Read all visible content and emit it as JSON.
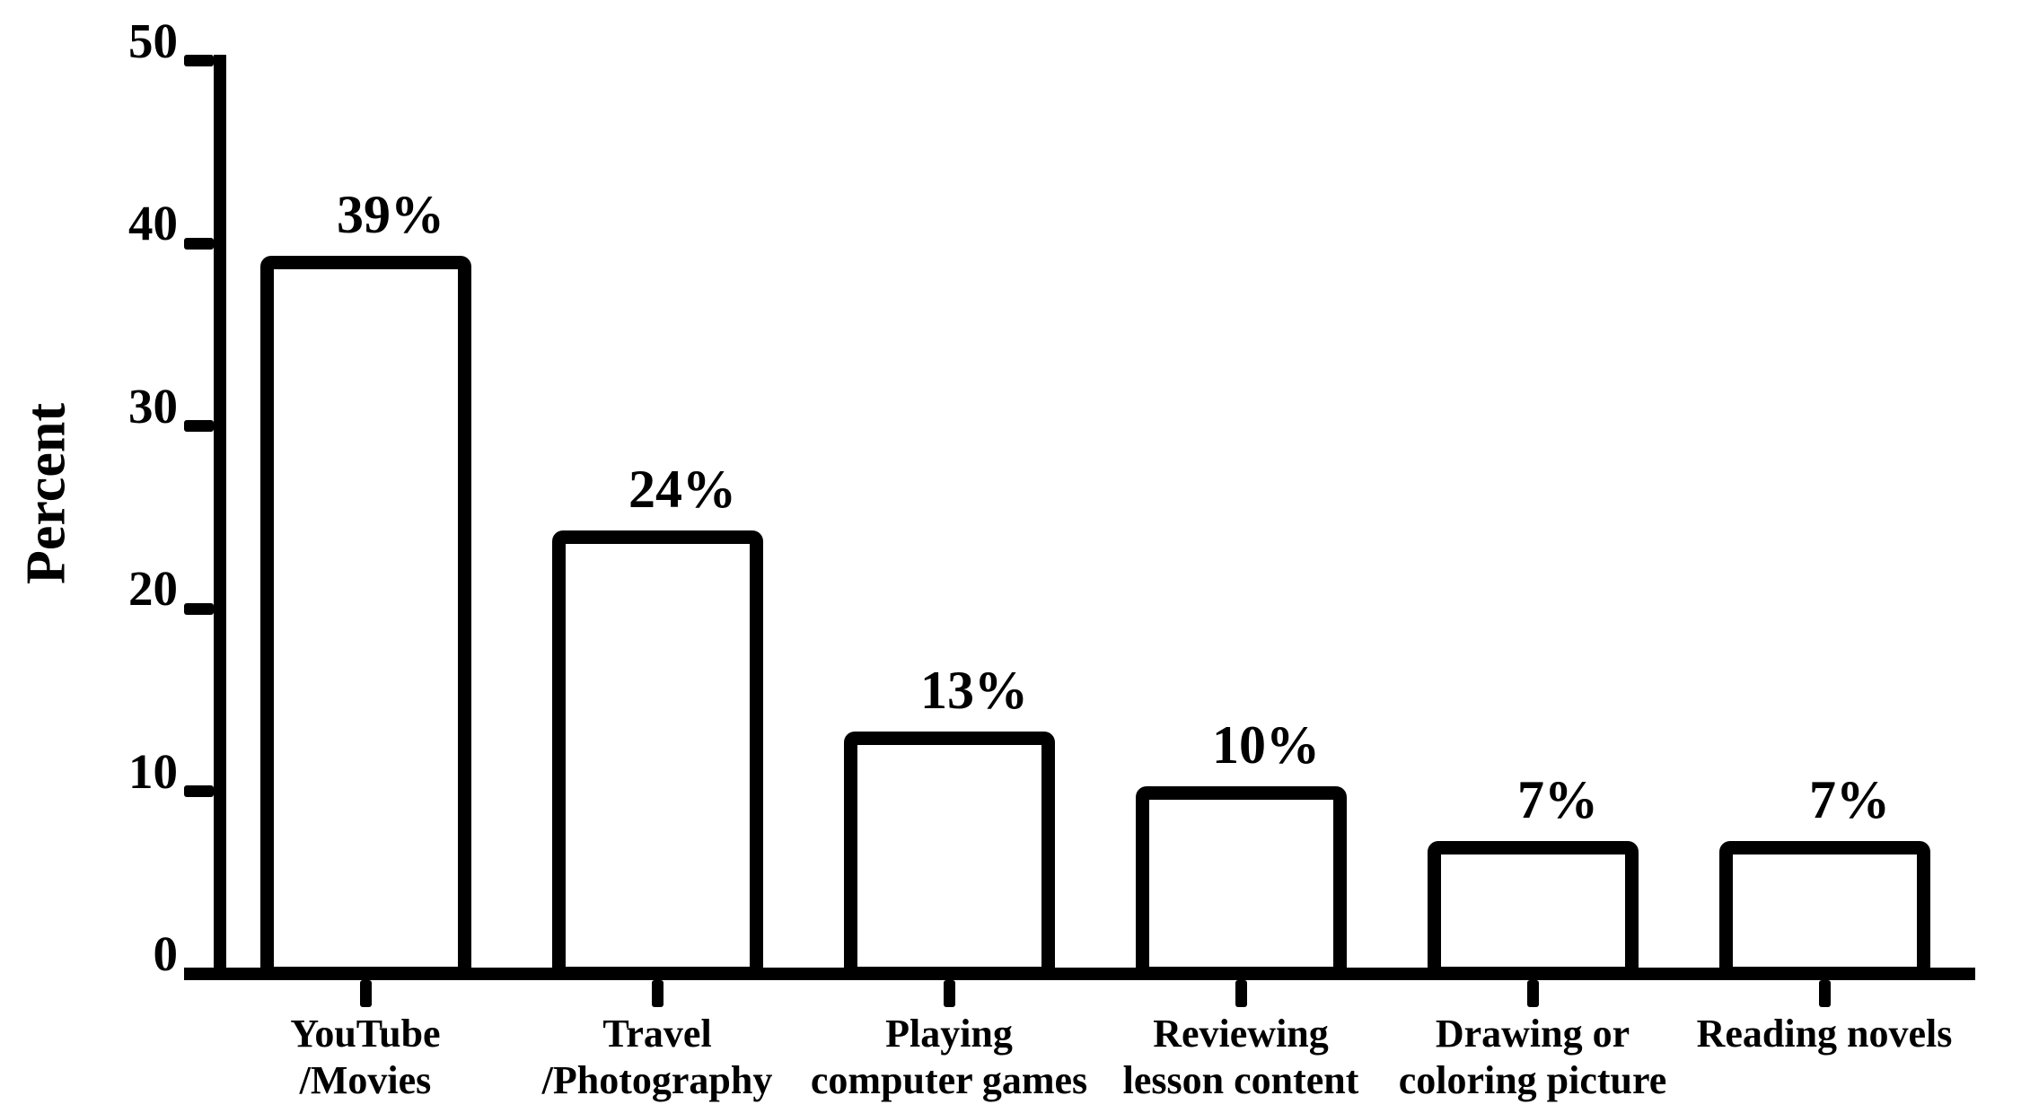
{
  "chart_data": {
    "type": "bar",
    "title": "",
    "ylabel": "Percent",
    "xlabel": "",
    "categories": [
      [
        "YouTube",
        "/Movies"
      ],
      [
        "Travel",
        "/Photography"
      ],
      [
        "Playing",
        "computer games"
      ],
      [
        "Reviewing",
        "lesson content"
      ],
      [
        "Drawing or",
        "coloring picture"
      ],
      [
        "Reading novels"
      ]
    ],
    "values": [
      39,
      24,
      13,
      10,
      7,
      7
    ],
    "value_labels": [
      "39%",
      "24%",
      "13%",
      "10%",
      "7%",
      "7%"
    ],
    "yticks": [
      "0",
      "10",
      "20",
      "30",
      "40",
      "50"
    ],
    "ytick_values": [
      0,
      10,
      20,
      30,
      40,
      50
    ],
    "ylim": [
      0,
      50
    ],
    "grid": false,
    "legend": false,
    "colors": {
      "background": "#ffffff",
      "bar_fill": "#ffffff",
      "bar_border": "#000000",
      "axis": "#000000",
      "text": "#000000"
    }
  }
}
